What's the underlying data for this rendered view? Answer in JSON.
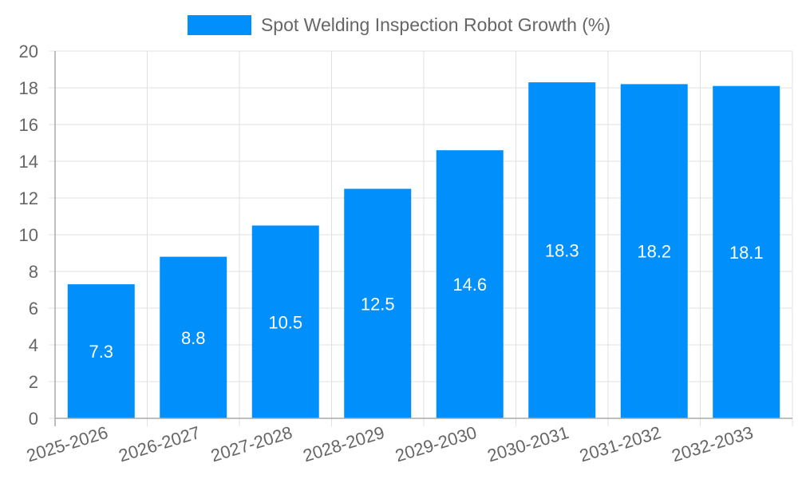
{
  "chart_data": {
    "type": "bar",
    "title": "",
    "xlabel": "",
    "ylabel": "",
    "categories": [
      "2025-2026",
      "2026-2027",
      "2027-2028",
      "2028-2029",
      "2029-2030",
      "2030-2031",
      "2031-2032",
      "2032-2033"
    ],
    "series": [
      {
        "name": "Spot Welding Inspection Robot Growth (%)",
        "values": [
          7.3,
          8.8,
          10.5,
          12.5,
          14.6,
          18.3,
          18.2,
          18.1
        ],
        "color": "#008ffb"
      }
    ],
    "ylim": [
      0,
      20
    ],
    "yticks": [
      0,
      2,
      4,
      6,
      8,
      10,
      12,
      14,
      16,
      18,
      20
    ],
    "grid": true,
    "legend_position": "top",
    "data_labels": [
      "7.3",
      "8.8",
      "10.5",
      "12.5",
      "14.6",
      "18.3",
      "18.2",
      "18.1"
    ]
  },
  "legend": {
    "label": "Spot Welding Inspection Robot Growth (%)",
    "color": "#008ffb"
  },
  "colors": {
    "bar": "#008ffb",
    "grid": "#e0e0e0",
    "axis": "#aaaaaa",
    "tick_text": "#666666",
    "data_label": "#ffffff"
  }
}
